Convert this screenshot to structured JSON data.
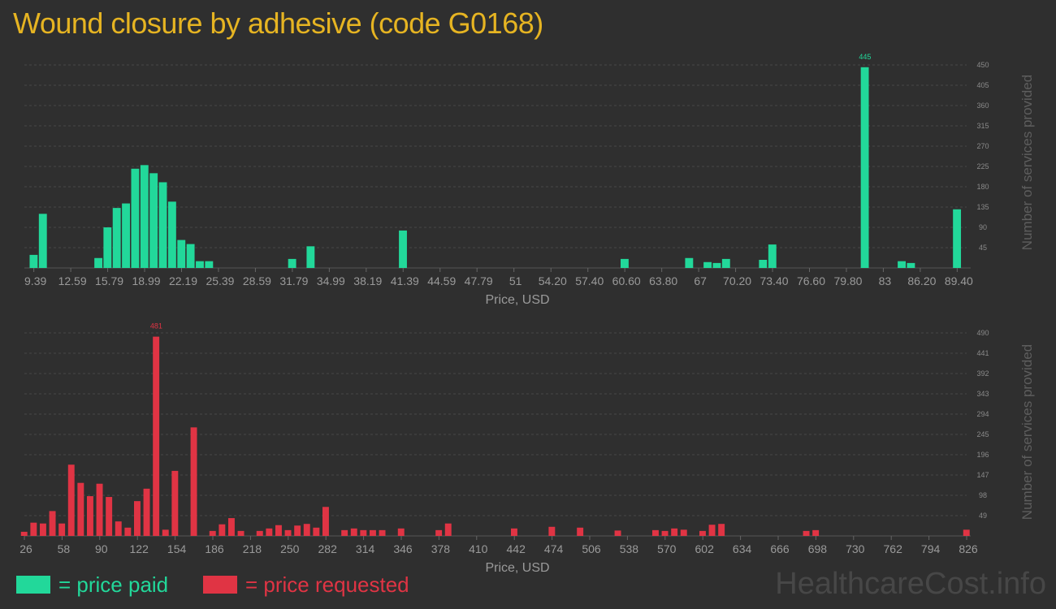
{
  "title": "Wound closure by adhesive (code G0168)",
  "legend": {
    "paid_label": "= price paid",
    "requested_label": "= price requested"
  },
  "watermark": "HealthcareCost.info",
  "colors": {
    "paid": "#22d89a",
    "requested": "#e03444",
    "title": "#e6b422",
    "background": "#2f2f2f"
  },
  "chart_data": [
    {
      "type": "bar",
      "name": "price paid",
      "xlabel": "Price, USD",
      "ylabel": "Number of services provided",
      "xlim": [
        8.57,
        90.22
      ],
      "ylim": [
        0,
        450
      ],
      "yticks": [
        45,
        90,
        135,
        180,
        225,
        270,
        315,
        360,
        405,
        450
      ],
      "xtick_labels": [
        "9.39",
        "12.59",
        "15.79",
        "18.99",
        "22.19",
        "25.39",
        "28.59",
        "31.79",
        "34.99",
        "38.19",
        "41.39",
        "44.59",
        "47.79",
        "51",
        "54.20",
        "57.40",
        "60.60",
        "63.80",
        "67",
        "70.20",
        "73.40",
        "76.60",
        "79.80",
        "83",
        "86.20",
        "89.40"
      ],
      "xtick_values": [
        9.39,
        12.59,
        15.79,
        18.99,
        22.19,
        25.39,
        28.59,
        31.79,
        34.99,
        38.19,
        41.39,
        44.59,
        47.79,
        50.99,
        54.2,
        57.4,
        60.6,
        63.8,
        67.0,
        70.2,
        73.4,
        76.6,
        79.8,
        83.0,
        86.2,
        89.4
      ],
      "bin_width": 0.8,
      "peak_label": "445",
      "x": [
        9.39,
        10.19,
        15.0,
        15.79,
        16.59,
        17.39,
        18.19,
        18.99,
        19.79,
        20.59,
        21.39,
        22.19,
        22.99,
        23.79,
        24.59,
        31.79,
        33.39,
        41.39,
        60.6,
        66.19,
        67.79,
        68.59,
        69.39,
        72.59,
        73.4,
        81.41,
        84.61,
        85.41,
        89.4
      ],
      "values": [
        29,
        120,
        22,
        90,
        133,
        143,
        220,
        228,
        210,
        190,
        147,
        62,
        53,
        15,
        15,
        20,
        48,
        83,
        20,
        22,
        13,
        11,
        20,
        18,
        52,
        445,
        15,
        11,
        130
      ]
    },
    {
      "type": "bar",
      "name": "price requested",
      "xlabel": "Price, USD",
      "ylabel": "Number of services provided",
      "xlim": [
        26,
        826
      ],
      "ylim": [
        0,
        490
      ],
      "yticks": [
        49,
        98,
        147,
        196,
        245,
        294,
        343,
        392,
        441,
        490
      ],
      "xtick_labels": [
        "26",
        "58",
        "90",
        "122",
        "154",
        "186",
        "218",
        "250",
        "282",
        "314",
        "346",
        "378",
        "410",
        "442",
        "474",
        "506",
        "538",
        "570",
        "602",
        "634",
        "666",
        "698",
        "730",
        "762",
        "794",
        "826"
      ],
      "xtick_values": [
        26,
        58,
        90,
        122,
        154,
        186,
        218,
        250,
        282,
        314,
        346,
        378,
        410,
        442,
        474,
        506,
        538,
        570,
        602,
        634,
        666,
        698,
        730,
        762,
        794,
        826
      ],
      "bin_width": 6.5,
      "peak_label": "481",
      "x": [
        26,
        34,
        42,
        50,
        58,
        66,
        74,
        82,
        90,
        98,
        106,
        114,
        122,
        130,
        138,
        146,
        154,
        170,
        186,
        194,
        202,
        210,
        226,
        234,
        242,
        250,
        258,
        266,
        274,
        282,
        298,
        306,
        314,
        322,
        330,
        346,
        378,
        386,
        442,
        474,
        498,
        530,
        562,
        570,
        578,
        586,
        602,
        610,
        618,
        690,
        698,
        826
      ],
      "values": [
        10,
        32,
        30,
        60,
        30,
        172,
        128,
        96,
        126,
        94,
        35,
        20,
        84,
        114,
        481,
        15,
        157,
        262,
        12,
        28,
        43,
        12,
        12,
        18,
        26,
        14,
        25,
        29,
        20,
        70,
        14,
        18,
        14,
        14,
        14,
        18,
        14,
        30,
        18,
        22,
        20,
        13,
        14,
        12,
        18,
        15,
        12,
        27,
        29,
        12,
        14,
        15
      ]
    }
  ]
}
